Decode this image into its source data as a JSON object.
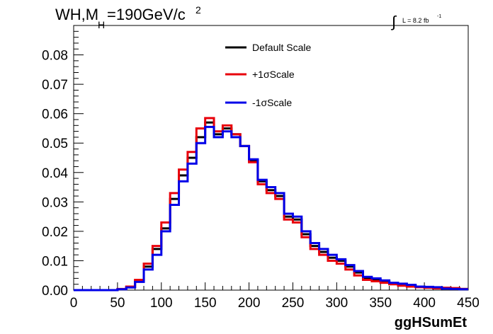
{
  "chart_data": {
    "type": "line",
    "title": {
      "main": "WH,M",
      "subscript": "H",
      "rest": "=190GeV/c",
      "superscript": "2"
    },
    "lumi": {
      "integral": "∫",
      "label": "L = 8.2 fb",
      "exponent": "-1"
    },
    "xlabel": "ggHSumEt",
    "ylabel": "",
    "xlim": [
      0,
      450
    ],
    "ylim": [
      0,
      0.09
    ],
    "bin_width": 10,
    "x_ticks": [
      {
        "value": 0,
        "label": "0"
      },
      {
        "value": 50,
        "label": "50"
      },
      {
        "value": 100,
        "label": "100"
      },
      {
        "value": 150,
        "label": "150"
      },
      {
        "value": 200,
        "label": "200"
      },
      {
        "value": 250,
        "label": "250"
      },
      {
        "value": 300,
        "label": "300"
      },
      {
        "value": 350,
        "label": "350"
      },
      {
        "value": 400,
        "label": "400"
      },
      {
        "value": 450,
        "label": "450"
      }
    ],
    "y_ticks": [
      {
        "value": 0,
        "label": "0.00"
      },
      {
        "value": 0.01,
        "label": "0.01"
      },
      {
        "value": 0.02,
        "label": "0.02"
      },
      {
        "value": 0.03,
        "label": "0.03"
      },
      {
        "value": 0.04,
        "label": "0.04"
      },
      {
        "value": 0.05,
        "label": "0.05"
      },
      {
        "value": 0.06,
        "label": "0.06"
      },
      {
        "value": 0.07,
        "label": "0.07"
      },
      {
        "value": 0.08,
        "label": "0.08"
      }
    ],
    "legend_position": "top-center",
    "series": [
      {
        "name": "Default Scale",
        "color": "#000000",
        "values": [
          0,
          0,
          0,
          0,
          0,
          0.0003,
          0.001,
          0.003,
          0.008,
          0.014,
          0.021,
          0.031,
          0.039,
          0.045,
          0.052,
          0.057,
          0.053,
          0.055,
          0.053,
          0.049,
          0.044,
          0.037,
          0.034,
          0.032,
          0.025,
          0.024,
          0.019,
          0.015,
          0.013,
          0.011,
          0.01,
          0.008,
          0.006,
          0.004,
          0.0035,
          0.003,
          0.0022,
          0.002,
          0.0015,
          0.0012,
          0.001,
          0.0008,
          0.0007,
          0.0005,
          0.0004
        ]
      },
      {
        "name": "+1σScale",
        "color": "#e8000b",
        "values": [
          0,
          0,
          0,
          0,
          0,
          0.0004,
          0.0012,
          0.0035,
          0.009,
          0.015,
          0.023,
          0.033,
          0.041,
          0.047,
          0.055,
          0.0585,
          0.054,
          0.056,
          0.053,
          0.049,
          0.0435,
          0.036,
          0.033,
          0.031,
          0.024,
          0.023,
          0.018,
          0.014,
          0.012,
          0.01,
          0.009,
          0.007,
          0.005,
          0.0035,
          0.003,
          0.0025,
          0.002,
          0.0015,
          0.0012,
          0.001,
          0.0008,
          0.0006,
          0.0008,
          0.0007,
          0.0004
        ]
      },
      {
        "name": "-1σScale",
        "color": "#0000e8",
        "values": [
          0,
          0,
          0,
          0,
          0,
          0.0003,
          0.0009,
          0.0028,
          0.007,
          0.012,
          0.02,
          0.029,
          0.037,
          0.043,
          0.05,
          0.0555,
          0.052,
          0.054,
          0.052,
          0.049,
          0.0445,
          0.0375,
          0.035,
          0.033,
          0.026,
          0.025,
          0.02,
          0.016,
          0.014,
          0.012,
          0.0105,
          0.0085,
          0.0065,
          0.0045,
          0.004,
          0.0033,
          0.0025,
          0.0022,
          0.0018,
          0.0012,
          0.0011,
          0.001,
          0.0005,
          0.0004,
          0.0003
        ]
      }
    ]
  }
}
